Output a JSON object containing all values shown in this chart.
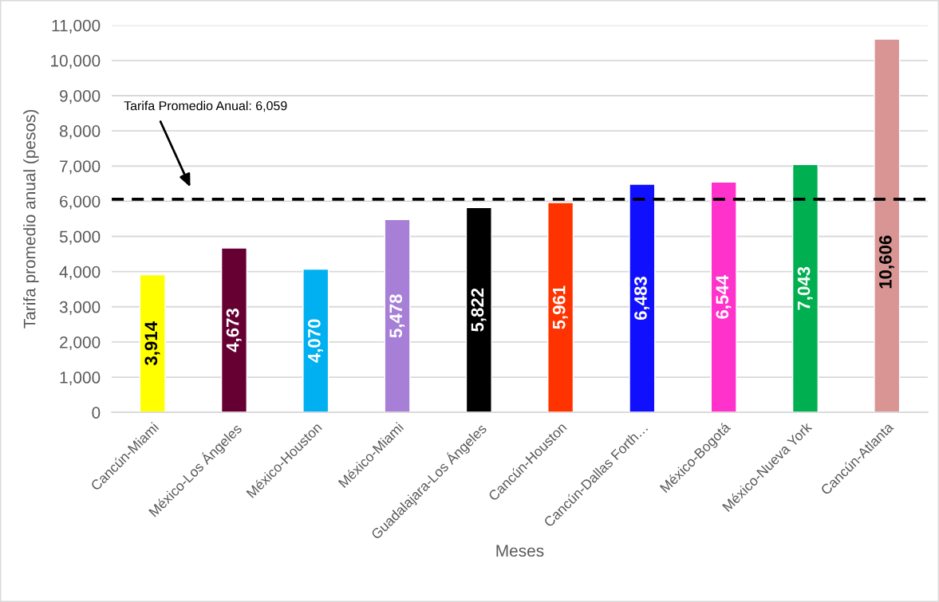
{
  "chart_data": {
    "type": "bar",
    "xlabel": "Meses",
    "ylabel": "Tarifa promedio anual (pesos)",
    "categories": [
      "Cancún-Miami",
      "México-Los Ángeles",
      "México-Houston",
      "México-Miami",
      "Guadalajara-Los Ángeles",
      "Cancún-Houston",
      "Cancún-Dallas Forth…",
      "México-Bogotá",
      "México-Nueva York",
      "Cancún-Atlanta"
    ],
    "values": [
      3914,
      4673,
      4070,
      5478,
      5822,
      5961,
      6483,
      6544,
      7043,
      10606
    ],
    "value_labels": [
      "3,914",
      "4,673",
      "4,070",
      "5,478",
      "5,822",
      "5,961",
      "6,483",
      "6,544",
      "7,043",
      "10,606"
    ],
    "colors": [
      "#ffff00",
      "#660033",
      "#00b0f0",
      "#a77fd7",
      "#000000",
      "#ff3300",
      "#1010ff",
      "#ff33cc",
      "#00b050",
      "#d99594"
    ],
    "ylim": [
      0,
      11000
    ],
    "yticks": [
      0,
      {
        "value": 1000,
        "label": "1,000"
      },
      {
        "value": 2000,
        "label": "2,000"
      },
      {
        "value": 3000,
        "label": "3,000"
      },
      {
        "value": 4000,
        "label": "4,000"
      },
      {
        "value": 5000,
        "label": "5,000"
      },
      {
        "value": 6000,
        "label": "6,000"
      },
      {
        "value": 7000,
        "label": "7,000"
      },
      {
        "value": 8000,
        "label": "8,000"
      },
      {
        "value": 9000,
        "label": "9,000"
      },
      {
        "value": 10000,
        "label": "10,000"
      },
      {
        "value": 11000,
        "label": "11,000"
      }
    ],
    "grid": "y",
    "ref_lines": [
      {
        "axis": "y",
        "value": 6059,
        "label": "Tarifa Promedio Anual: 6,059",
        "color": "#000000",
        "line_style": "dashed"
      }
    ]
  }
}
